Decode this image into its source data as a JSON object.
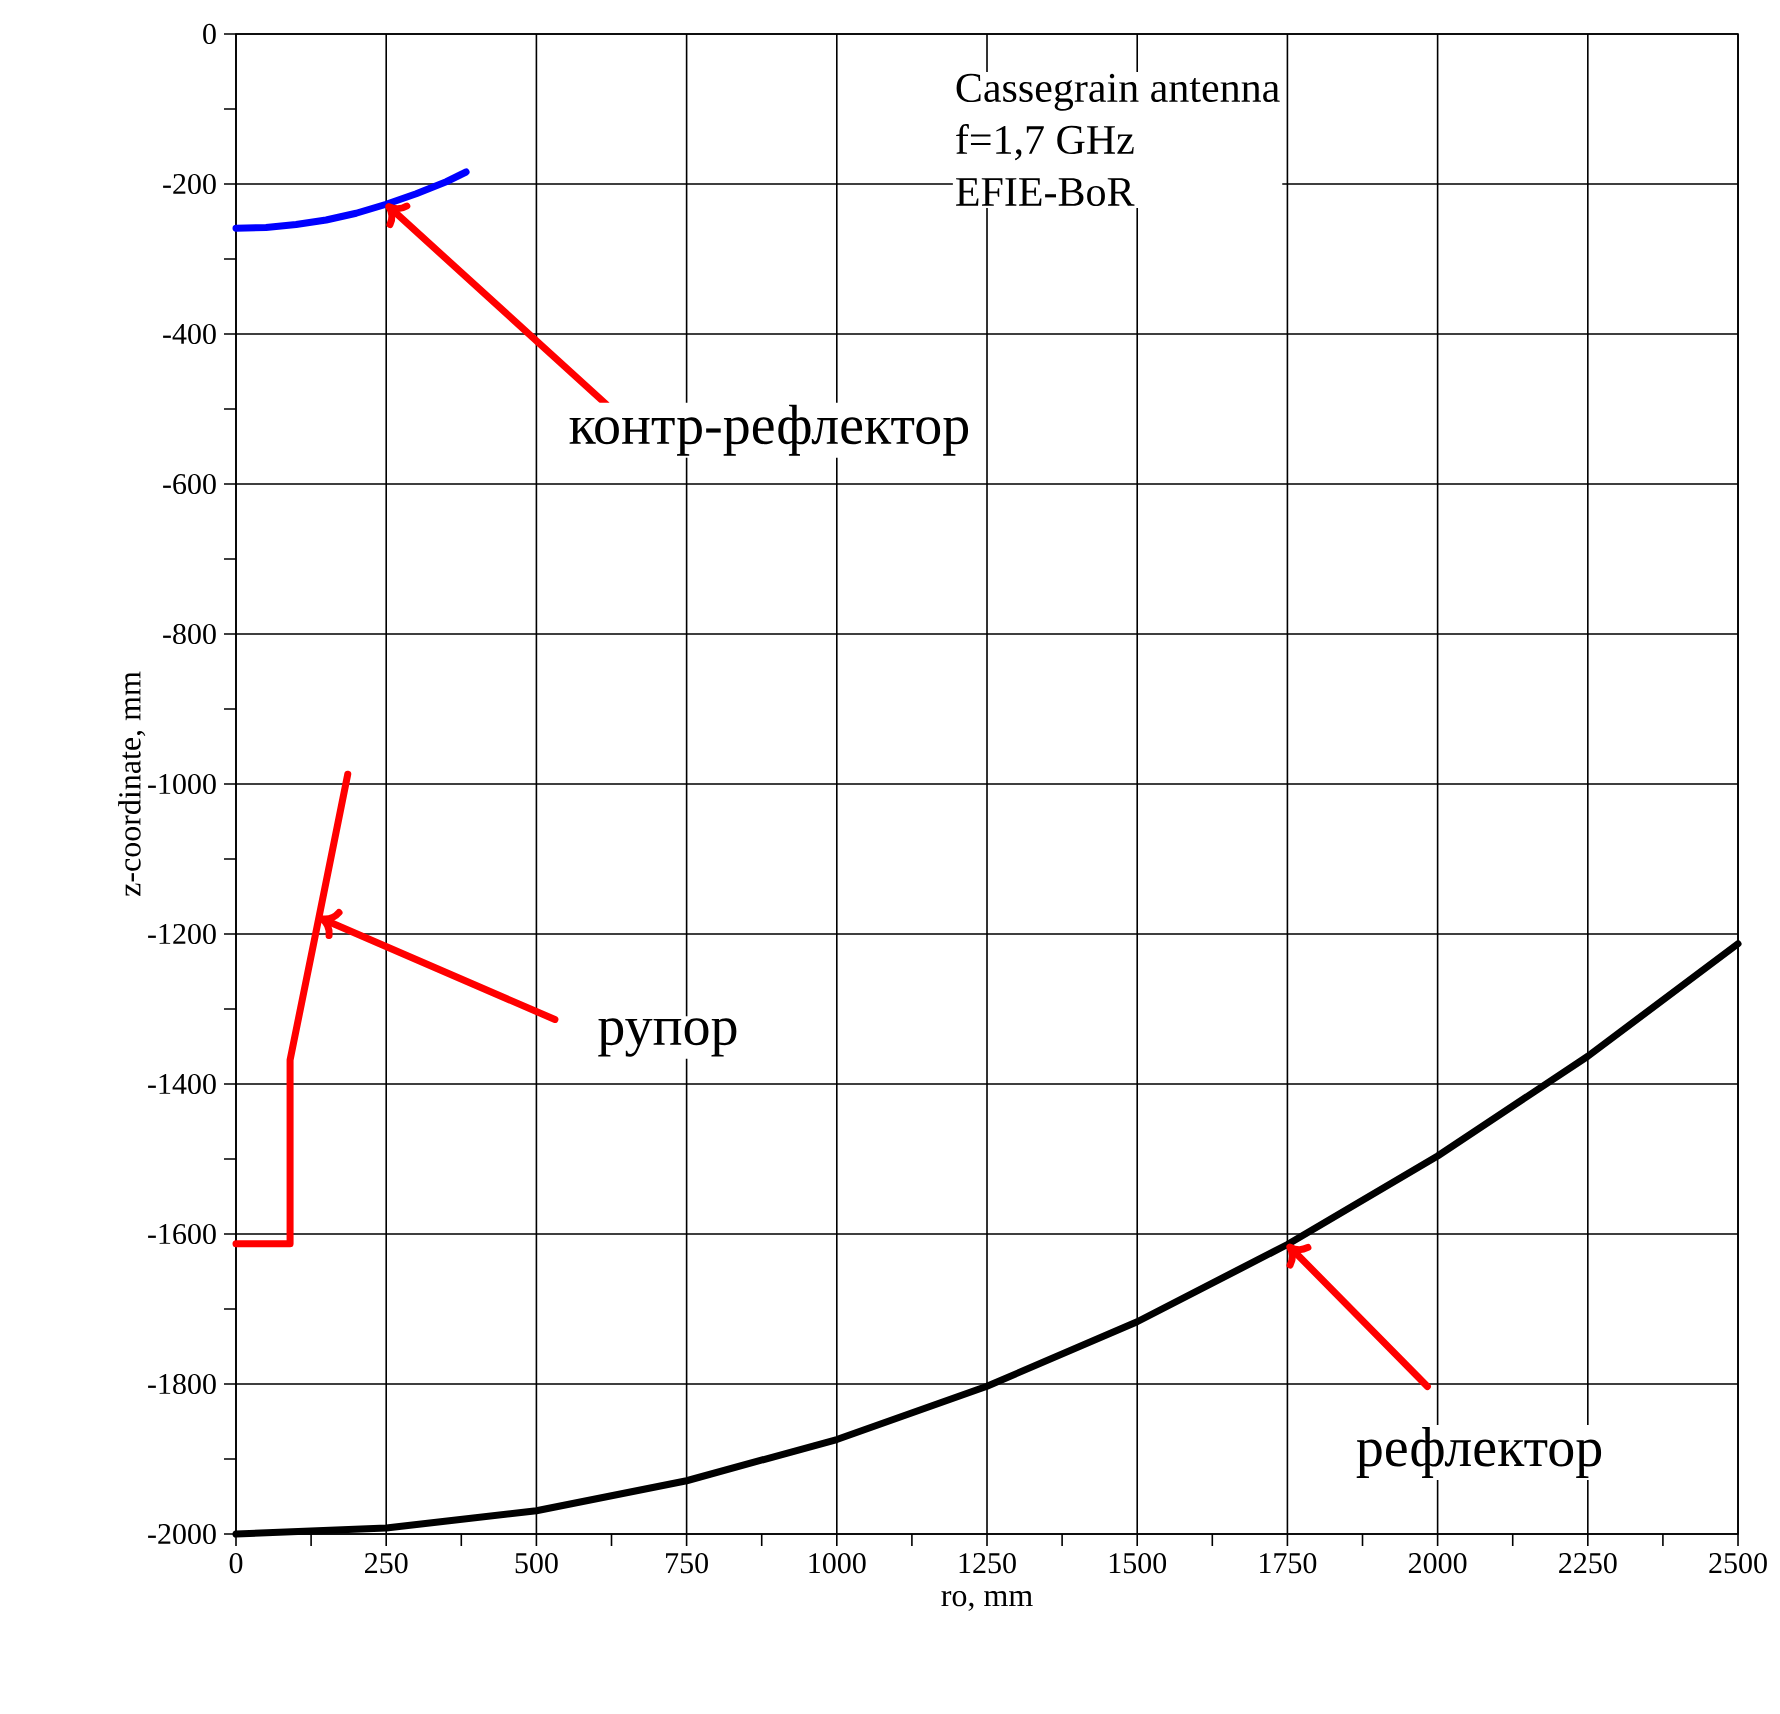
{
  "chart_data": {
    "type": "line",
    "xlabel": "ro, mm",
    "ylabel": "z-coordinate, mm",
    "xlim": [
      0,
      2500
    ],
    "xticks": [
      0,
      250,
      500,
      750,
      1000,
      1250,
      1500,
      1750,
      2000,
      2250,
      2500
    ],
    "ylim": [
      -2000,
      0
    ],
    "yticks": [
      -2000,
      -1800,
      -1600,
      -1400,
      -1200,
      -1000,
      -800,
      -600,
      -400,
      -200,
      0
    ],
    "grid": true,
    "marker": "none",
    "series": [
      {
        "color": "#0000ff",
        "x": [
          0,
          50,
          100,
          150,
          200,
          250,
          300,
          350,
          383
        ],
        "values": [
          -259,
          -258,
          -254,
          -248,
          -239,
          -227,
          -213,
          -197,
          -184
        ]
      },
      {
        "color": "#ff0000",
        "x": [
          0,
          90,
          90,
          138,
          186
        ],
        "values": [
          -1613,
          -1613,
          -1368,
          -1178,
          -987
        ]
      },
      {
        "color": "#000000",
        "x": [
          0,
          250,
          500,
          750,
          1000,
          1250,
          1500,
          1750,
          2000,
          2250,
          2500
        ],
        "values": [
          -2000,
          -1992,
          -1969,
          -1929,
          -1874,
          -1803,
          -1717,
          -1614,
          -1496,
          -1363,
          -1213
        ]
      }
    ],
    "annotations": [
      "Cassegrain antenna",
      "f=1,7 GHz",
      "EFIE-BoR",
      {
        "text": "контр-рефлектор",
        "x": 250,
        "y": -227
      },
      {
        "text": "рупор",
        "x": 138,
        "y": -1178
      },
      {
        "text": "рефлектор",
        "x": 1750,
        "y": -1614
      }
    ]
  }
}
